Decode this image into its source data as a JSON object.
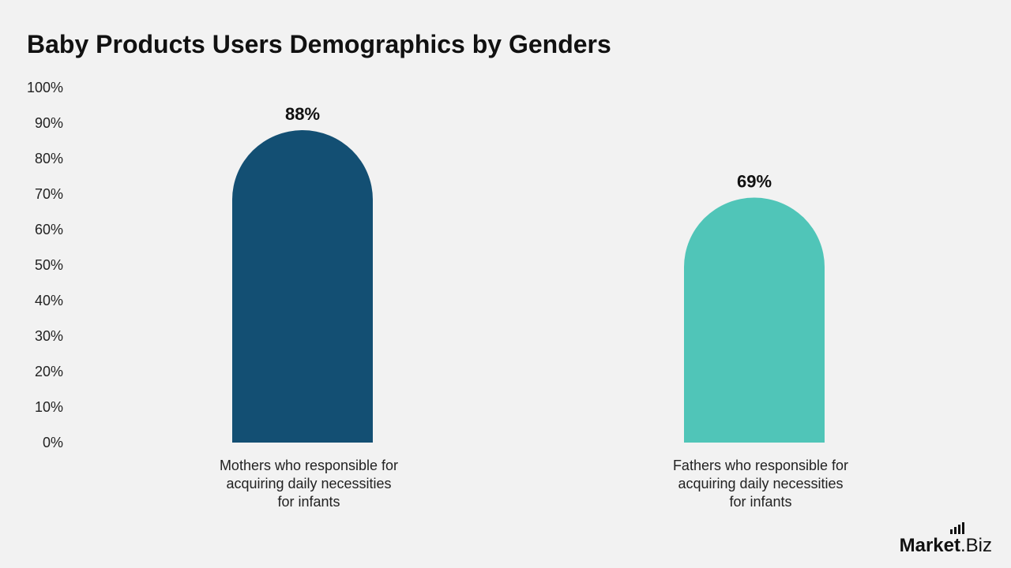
{
  "chart_data": {
    "type": "bar",
    "title": "Baby Products Users Demographics by Genders",
    "categories": [
      "Mothers who responsible for\nacquiring daily necessities\nfor infants",
      "Fathers who responsible for\nacquiring daily necessities\nfor infants"
    ],
    "values": [
      88,
      69
    ],
    "value_labels": [
      "88%",
      "69%"
    ],
    "colors": [
      "#134f73",
      "#50c5b8"
    ],
    "ylim": [
      0,
      100
    ],
    "yticks": [
      "0%",
      "10%",
      "20%",
      "30%",
      "40%",
      "50%",
      "60%",
      "70%",
      "80%",
      "90%",
      "100%"
    ],
    "grid": false,
    "legend": "none"
  },
  "branding": {
    "logo_part1": "Market",
    "logo_part2": ".Biz"
  }
}
